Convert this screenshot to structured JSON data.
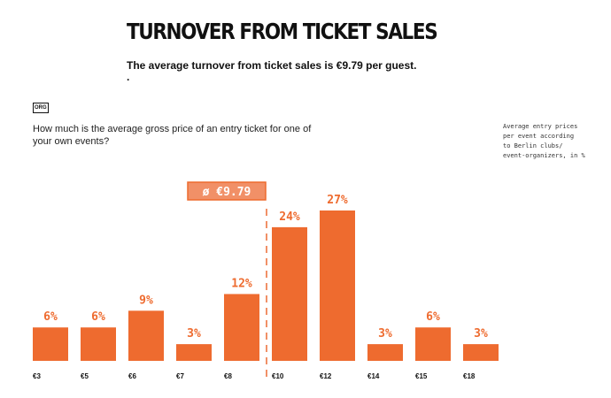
{
  "header": {
    "title": "TURNOVER FROM TICKET SALES",
    "subtitle": "The average turnover from ticket sales is €9.79 per guest.",
    "subtitle_dot": "."
  },
  "badge": {
    "label": "ORG"
  },
  "question": "How much is the average gross price of an entry ticket for one of your own events?",
  "note": "Average entry prices\nper event according\nto Berlin clubs/\nevent-organizers, in %",
  "colors": {
    "bar": "#ee6b2f",
    "average_box": "#f19067",
    "average_text": "#ffffff"
  },
  "chart_data": {
    "type": "bar",
    "categories": [
      "€3",
      "€5",
      "€6",
      "€7",
      "€8",
      "€10",
      "€12",
      "€14",
      "€15",
      "€18"
    ],
    "values": [
      6,
      6,
      9,
      3,
      12,
      24,
      27,
      3,
      6,
      3
    ],
    "value_labels": [
      "6%",
      "6%",
      "9%",
      "3%",
      "12%",
      "24%",
      "27%",
      "3%",
      "6%",
      "3%"
    ],
    "ylim": [
      0,
      27
    ],
    "average": {
      "label": "ø €9.79",
      "value": 9.79,
      "position": "between €8 and €10"
    },
    "grid": false
  }
}
